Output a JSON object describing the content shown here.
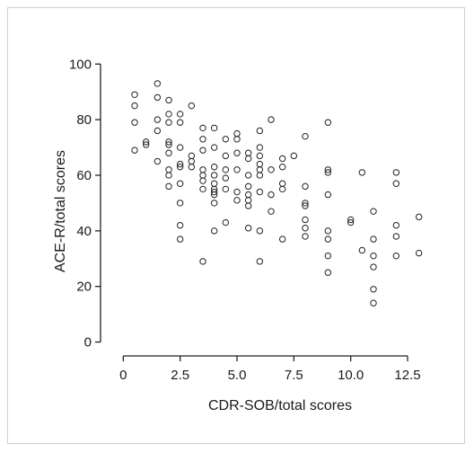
{
  "chart_data": {
    "type": "scatter",
    "title": "",
    "xlabel": "CDR-SOB/total scores",
    "ylabel": "ACE-R/total scores",
    "xlim": [
      -1,
      14
    ],
    "ylim": [
      -5,
      103
    ],
    "x_ticks": [
      0,
      2.5,
      5.0,
      7.5,
      10.0,
      12.5
    ],
    "x_tick_labels": [
      "0",
      "2.5",
      "5.0",
      "7.5",
      "10.0",
      "12.5"
    ],
    "y_ticks": [
      0,
      20,
      40,
      60,
      80,
      100
    ],
    "y_tick_labels": [
      "0",
      "20",
      "40",
      "60",
      "80",
      "100"
    ],
    "grid": false,
    "marker": "open-circle",
    "color": "#222222",
    "points": [
      [
        0.5,
        89
      ],
      [
        0.5,
        85
      ],
      [
        0.5,
        79
      ],
      [
        0.5,
        69
      ],
      [
        1,
        72
      ],
      [
        1,
        71
      ],
      [
        1.5,
        93
      ],
      [
        1.5,
        88
      ],
      [
        1.5,
        80
      ],
      [
        1.5,
        76
      ],
      [
        1.5,
        65
      ],
      [
        2,
        87
      ],
      [
        2,
        82
      ],
      [
        2,
        79
      ],
      [
        2,
        72
      ],
      [
        2,
        71
      ],
      [
        2,
        68
      ],
      [
        2,
        62
      ],
      [
        2,
        60
      ],
      [
        2,
        56
      ],
      [
        2.5,
        82
      ],
      [
        2.5,
        79
      ],
      [
        2.5,
        70
      ],
      [
        2.5,
        64
      ],
      [
        2.5,
        63
      ],
      [
        2.5,
        57
      ],
      [
        2.5,
        50
      ],
      [
        2.5,
        42
      ],
      [
        2.5,
        37
      ],
      [
        3,
        85
      ],
      [
        3,
        67
      ],
      [
        3,
        65
      ],
      [
        3,
        63
      ],
      [
        3.5,
        77
      ],
      [
        3.5,
        73
      ],
      [
        3.5,
        69
      ],
      [
        3.5,
        62
      ],
      [
        3.5,
        60
      ],
      [
        3.5,
        58
      ],
      [
        3.5,
        55
      ],
      [
        3.5,
        29
      ],
      [
        4,
        77
      ],
      [
        4,
        70
      ],
      [
        4,
        63
      ],
      [
        4,
        60
      ],
      [
        4,
        57
      ],
      [
        4,
        55
      ],
      [
        4,
        54
      ],
      [
        4,
        53
      ],
      [
        4,
        50
      ],
      [
        4,
        40
      ],
      [
        4.5,
        73
      ],
      [
        4.5,
        67
      ],
      [
        4.5,
        62
      ],
      [
        4.5,
        59
      ],
      [
        4.5,
        55
      ],
      [
        4.5,
        43
      ],
      [
        5,
        75
      ],
      [
        5,
        73
      ],
      [
        5,
        68
      ],
      [
        5,
        62
      ],
      [
        5,
        54
      ],
      [
        5,
        51
      ],
      [
        5.5,
        68
      ],
      [
        5.5,
        66
      ],
      [
        5.5,
        60
      ],
      [
        5.5,
        56
      ],
      [
        5.5,
        53
      ],
      [
        5.5,
        51
      ],
      [
        5.5,
        49
      ],
      [
        5.5,
        41
      ],
      [
        6,
        76
      ],
      [
        6,
        70
      ],
      [
        6,
        67
      ],
      [
        6,
        64
      ],
      [
        6,
        62
      ],
      [
        6,
        60
      ],
      [
        6,
        54
      ],
      [
        6,
        40
      ],
      [
        6,
        29
      ],
      [
        6.5,
        80
      ],
      [
        6.5,
        62
      ],
      [
        6.5,
        53
      ],
      [
        6.5,
        47
      ],
      [
        7,
        66
      ],
      [
        7,
        63
      ],
      [
        7,
        57
      ],
      [
        7,
        55
      ],
      [
        7,
        37
      ],
      [
        7.5,
        67
      ],
      [
        8,
        74
      ],
      [
        8,
        56
      ],
      [
        8,
        50
      ],
      [
        8,
        49
      ],
      [
        8,
        44
      ],
      [
        8,
        41
      ],
      [
        8,
        38
      ],
      [
        9,
        79
      ],
      [
        9,
        62
      ],
      [
        9,
        61
      ],
      [
        9,
        53
      ],
      [
        9,
        40
      ],
      [
        9,
        37
      ],
      [
        9,
        31
      ],
      [
        9,
        25
      ],
      [
        10,
        44
      ],
      [
        10,
        43
      ],
      [
        10.5,
        61
      ],
      [
        10.5,
        33
      ],
      [
        11,
        47
      ],
      [
        11,
        37
      ],
      [
        11,
        31
      ],
      [
        11,
        27
      ],
      [
        11,
        19
      ],
      [
        11,
        14
      ],
      [
        12,
        61
      ],
      [
        12,
        57
      ],
      [
        12,
        42
      ],
      [
        12,
        38
      ],
      [
        12,
        31
      ],
      [
        13,
        45
      ],
      [
        13,
        32
      ]
    ]
  }
}
